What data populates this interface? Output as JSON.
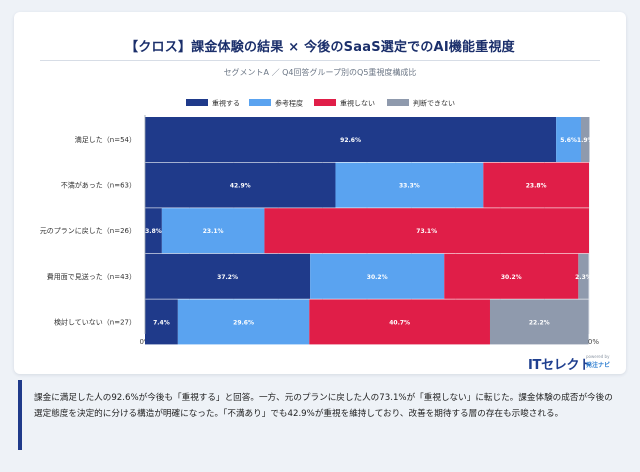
{
  "title": "【クロス】課金体験の結果 × 今後のSaaS選定でのAI機能重視度",
  "subtitle": "セグメントA ／ Q4回答グループ別のQ5重視度構成比",
  "brand": {
    "logo_main": "ITセレクト",
    "powered_by": "powered by",
    "partner": "発注ナビ"
  },
  "summary": "課金に満足した人の92.6%が今後も「重視する」と回答。一方、元のプランに戻した人の73.1%が「重視しない」に転じた。課金体験の成否が今後の選定態度を決定的に分ける構造が明確になった。「不満あり」でも42.9%が重視を維持しており、改善を期待する層の存在も示唆される。",
  "chart_data": {
    "type": "bar",
    "orientation": "horizontal",
    "stacked": true,
    "categories": [
      "満足した（n=54）",
      "不満があった（n=63）",
      "元のプランに戻した（n=26）",
      "費用面で見送った（n=43）",
      "検討していない（n=27）"
    ],
    "series": [
      {
        "name": "重視する",
        "color": "#1f3a8a",
        "values": [
          92.6,
          42.9,
          3.8,
          37.2,
          7.4
        ],
        "labels": [
          "92.6%",
          "42.9%",
          "3.8%",
          "37.2%",
          "7.4%"
        ]
      },
      {
        "name": "参考程度",
        "color": "#5aa3f0",
        "values": [
          5.6,
          33.3,
          23.1,
          30.2,
          29.6
        ],
        "labels": [
          "5.6%",
          "33.3%",
          "23.1%",
          "30.2%",
          "29.6%"
        ]
      },
      {
        "name": "重視しない",
        "color": "#e01e48",
        "values": [
          0,
          23.8,
          73.1,
          30.2,
          40.7
        ],
        "labels": [
          "",
          "23.8%",
          "73.1%",
          "30.2%",
          "40.7%"
        ]
      },
      {
        "name": "判断できない",
        "color": "#8f9aad",
        "values": [
          1.9,
          0,
          0,
          2.3,
          22.2
        ],
        "labels": [
          "1.9%",
          "",
          "",
          "2.3%",
          "22.2%"
        ]
      }
    ],
    "xlim": [
      0,
      100
    ],
    "xticks": [
      "0%",
      "10%",
      "20%",
      "30%",
      "40%",
      "50%",
      "60%",
      "70%",
      "80%",
      "90%",
      "100%"
    ],
    "grid": true,
    "legend_position": "top"
  }
}
